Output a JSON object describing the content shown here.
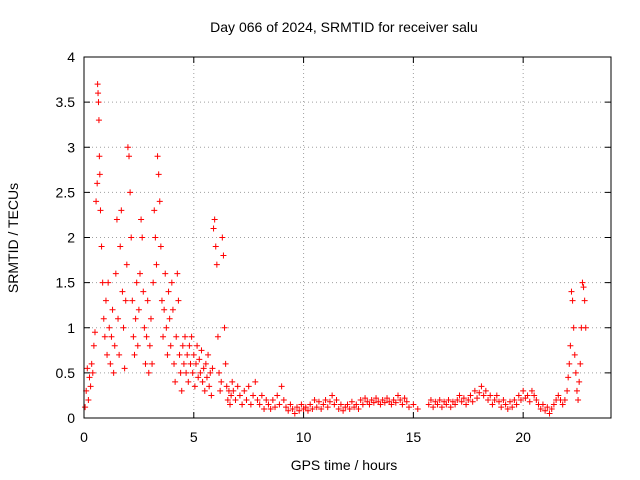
{
  "chart_data": {
    "type": "scatter",
    "title": "Day 066 of 2024, SRMTID for receiver salu",
    "xlabel": "GPS time / hours",
    "ylabel": "SRMTID / TECUs",
    "xlim": [
      0,
      24
    ],
    "ylim": [
      0,
      4
    ],
    "xticks": [
      0,
      5,
      10,
      15,
      20
    ],
    "xtick_labels": [
      "0",
      "5",
      "10",
      "15",
      "20"
    ],
    "yticks": [
      0,
      0.5,
      1,
      1.5,
      2,
      2.5,
      3,
      3.5,
      4
    ],
    "ytick_labels": [
      "0",
      "0.5",
      "1",
      "1.5",
      "2",
      "2.5",
      "3",
      "3.5",
      "4"
    ],
    "grid": true,
    "marker": "+",
    "color": "#ff0000",
    "series": [
      {
        "name": "SRMTID",
        "points": [
          [
            0.05,
            0.12
          ],
          [
            0.1,
            0.3
          ],
          [
            0.15,
            0.55
          ],
          [
            0.2,
            0.2
          ],
          [
            0.25,
            0.45
          ],
          [
            0.3,
            0.35
          ],
          [
            0.35,
            0.6
          ],
          [
            0.4,
            0.5
          ],
          [
            0.45,
            0.8
          ],
          [
            0.5,
            0.95
          ],
          [
            0.55,
            2.4
          ],
          [
            0.6,
            2.6
          ],
          [
            0.62,
            3.7
          ],
          [
            0.64,
            3.6
          ],
          [
            0.66,
            3.5
          ],
          [
            0.68,
            3.3
          ],
          [
            0.7,
            2.9
          ],
          [
            0.72,
            2.7
          ],
          [
            0.75,
            2.3
          ],
          [
            0.8,
            1.9
          ],
          [
            0.85,
            1.5
          ],
          [
            0.9,
            1.1
          ],
          [
            0.95,
            0.9
          ],
          [
            1.0,
            1.3
          ],
          [
            1.05,
            0.7
          ],
          [
            1.1,
            1.5
          ],
          [
            1.15,
            1.0
          ],
          [
            1.2,
            0.6
          ],
          [
            1.25,
            0.9
          ],
          [
            1.3,
            1.2
          ],
          [
            1.35,
            0.5
          ],
          [
            1.4,
            0.8
          ],
          [
            1.45,
            1.6
          ],
          [
            1.5,
            2.2
          ],
          [
            1.55,
            1.1
          ],
          [
            1.6,
            0.7
          ],
          [
            1.65,
            1.9
          ],
          [
            1.7,
            2.3
          ],
          [
            1.75,
            1.4
          ],
          [
            1.8,
            1.0
          ],
          [
            1.85,
            0.55
          ],
          [
            1.9,
            1.3
          ],
          [
            1.95,
            1.7
          ],
          [
            2.0,
            3.0
          ],
          [
            2.05,
            2.9
          ],
          [
            2.1,
            2.5
          ],
          [
            2.15,
            2.0
          ],
          [
            2.2,
            1.3
          ],
          [
            2.25,
            0.9
          ],
          [
            2.3,
            0.7
          ],
          [
            2.35,
            1.1
          ],
          [
            2.4,
            1.5
          ],
          [
            2.45,
            0.8
          ],
          [
            2.5,
            1.2
          ],
          [
            2.55,
            1.6
          ],
          [
            2.6,
            2.2
          ],
          [
            2.65,
            2.0
          ],
          [
            2.7,
            1.4
          ],
          [
            2.75,
            1.0
          ],
          [
            2.8,
            0.6
          ],
          [
            2.85,
            0.9
          ],
          [
            2.9,
            1.3
          ],
          [
            2.95,
            0.5
          ],
          [
            3.0,
            0.8
          ],
          [
            3.05,
            1.1
          ],
          [
            3.1,
            0.6
          ],
          [
            3.15,
            1.5
          ],
          [
            3.2,
            2.3
          ],
          [
            3.25,
            2.0
          ],
          [
            3.3,
            1.7
          ],
          [
            3.35,
            2.9
          ],
          [
            3.4,
            2.7
          ],
          [
            3.45,
            2.4
          ],
          [
            3.5,
            1.9
          ],
          [
            3.55,
            1.3
          ],
          [
            3.6,
            0.9
          ],
          [
            3.65,
            1.2
          ],
          [
            3.7,
            1.6
          ],
          [
            3.75,
            1.0
          ],
          [
            3.8,
            0.7
          ],
          [
            3.85,
            1.4
          ],
          [
            3.9,
            1.1
          ],
          [
            3.95,
            0.8
          ],
          [
            4.0,
            1.5
          ],
          [
            4.05,
            1.2
          ],
          [
            4.1,
            0.6
          ],
          [
            4.15,
            0.4
          ],
          [
            4.2,
            0.9
          ],
          [
            4.25,
            1.6
          ],
          [
            4.3,
            1.3
          ],
          [
            4.35,
            0.7
          ],
          [
            4.4,
            0.5
          ],
          [
            4.45,
            0.3
          ],
          [
            4.5,
            0.8
          ],
          [
            4.55,
            0.6
          ],
          [
            4.6,
            0.9
          ],
          [
            4.65,
            0.5
          ],
          [
            4.7,
            0.7
          ],
          [
            4.75,
            0.4
          ],
          [
            4.8,
            0.8
          ],
          [
            4.85,
            0.6
          ],
          [
            4.9,
            0.9
          ],
          [
            4.95,
            0.5
          ],
          [
            5.0,
            0.7
          ],
          [
            5.05,
            0.35
          ],
          [
            5.1,
            0.6
          ],
          [
            5.15,
            0.8
          ],
          [
            5.2,
            0.45
          ],
          [
            5.25,
            0.65
          ],
          [
            5.3,
            0.5
          ],
          [
            5.35,
            0.75
          ],
          [
            5.4,
            0.4
          ],
          [
            5.45,
            0.55
          ],
          [
            5.5,
            0.3
          ],
          [
            5.55,
            0.6
          ],
          [
            5.6,
            0.45
          ],
          [
            5.65,
            0.7
          ],
          [
            5.7,
            0.35
          ],
          [
            5.75,
            0.5
          ],
          [
            5.8,
            0.25
          ],
          [
            5.85,
            0.55
          ],
          [
            5.9,
            2.1
          ],
          [
            5.95,
            2.2
          ],
          [
            6.0,
            1.9
          ],
          [
            6.05,
            1.7
          ],
          [
            6.1,
            0.9
          ],
          [
            6.15,
            0.5
          ],
          [
            6.2,
            0.3
          ],
          [
            6.25,
            0.4
          ],
          [
            6.3,
            2.0
          ],
          [
            6.35,
            1.8
          ],
          [
            6.4,
            1.0
          ],
          [
            6.45,
            0.6
          ],
          [
            6.5,
            0.35
          ],
          [
            6.55,
            0.2
          ],
          [
            6.6,
            0.3
          ],
          [
            6.65,
            0.15
          ],
          [
            6.7,
            0.25
          ],
          [
            6.75,
            0.4
          ],
          [
            6.8,
            0.3
          ],
          [
            6.9,
            0.2
          ],
          [
            7.0,
            0.35
          ],
          [
            7.1,
            0.25
          ],
          [
            7.2,
            0.15
          ],
          [
            7.3,
            0.3
          ],
          [
            7.4,
            0.2
          ],
          [
            7.5,
            0.35
          ],
          [
            7.6,
            0.15
          ],
          [
            7.7,
            0.25
          ],
          [
            7.8,
            0.4
          ],
          [
            7.9,
            0.2
          ],
          [
            8.0,
            0.15
          ],
          [
            8.1,
            0.25
          ],
          [
            8.2,
            0.1
          ],
          [
            8.3,
            0.2
          ],
          [
            8.4,
            0.15
          ],
          [
            8.5,
            0.1
          ],
          [
            8.6,
            0.2
          ],
          [
            8.7,
            0.12
          ],
          [
            8.8,
            0.25
          ],
          [
            8.9,
            0.15
          ],
          [
            9.0,
            0.35
          ],
          [
            9.1,
            0.2
          ],
          [
            9.2,
            0.12
          ],
          [
            9.3,
            0.08
          ],
          [
            9.4,
            0.15
          ],
          [
            9.5,
            0.1
          ],
          [
            9.6,
            0.05
          ],
          [
            9.7,
            0.12
          ],
          [
            9.8,
            0.08
          ],
          [
            9.9,
            0.15
          ],
          [
            10.0,
            0.1
          ],
          [
            10.1,
            0.12
          ],
          [
            10.2,
            0.08
          ],
          [
            10.3,
            0.15
          ],
          [
            10.4,
            0.1
          ],
          [
            10.5,
            0.2
          ],
          [
            10.6,
            0.12
          ],
          [
            10.7,
            0.18
          ],
          [
            10.8,
            0.1
          ],
          [
            10.9,
            0.15
          ],
          [
            11.0,
            0.2
          ],
          [
            11.1,
            0.12
          ],
          [
            11.2,
            0.18
          ],
          [
            11.3,
            0.25
          ],
          [
            11.4,
            0.15
          ],
          [
            11.5,
            0.2
          ],
          [
            11.6,
            0.1
          ],
          [
            11.7,
            0.15
          ],
          [
            11.8,
            0.08
          ],
          [
            11.9,
            0.12
          ],
          [
            12.0,
            0.15
          ],
          [
            12.1,
            0.1
          ],
          [
            12.2,
            0.18
          ],
          [
            12.3,
            0.12
          ],
          [
            12.4,
            0.15
          ],
          [
            12.5,
            0.1
          ],
          [
            12.6,
            0.2
          ],
          [
            12.7,
            0.15
          ],
          [
            12.8,
            0.22
          ],
          [
            12.9,
            0.18
          ],
          [
            13.0,
            0.15
          ],
          [
            13.1,
            0.2
          ],
          [
            13.2,
            0.17
          ],
          [
            13.3,
            0.22
          ],
          [
            13.4,
            0.18
          ],
          [
            13.5,
            0.15
          ],
          [
            13.6,
            0.2
          ],
          [
            13.7,
            0.17
          ],
          [
            13.8,
            0.22
          ],
          [
            13.9,
            0.18
          ],
          [
            14.0,
            0.15
          ],
          [
            14.1,
            0.2
          ],
          [
            14.2,
            0.17
          ],
          [
            14.3,
            0.25
          ],
          [
            14.4,
            0.2
          ],
          [
            14.5,
            0.15
          ],
          [
            14.6,
            0.22
          ],
          [
            14.7,
            0.18
          ],
          [
            14.8,
            0.12
          ],
          [
            15.0,
            0.15
          ],
          [
            15.2,
            0.1
          ],
          [
            15.7,
            0.15
          ],
          [
            15.8,
            0.2
          ],
          [
            15.9,
            0.12
          ],
          [
            16.0,
            0.18
          ],
          [
            16.1,
            0.15
          ],
          [
            16.2,
            0.2
          ],
          [
            16.3,
            0.12
          ],
          [
            16.4,
            0.18
          ],
          [
            16.5,
            0.15
          ],
          [
            16.6,
            0.2
          ],
          [
            16.7,
            0.12
          ],
          [
            16.8,
            0.18
          ],
          [
            16.9,
            0.15
          ],
          [
            17.0,
            0.2
          ],
          [
            17.1,
            0.25
          ],
          [
            17.2,
            0.18
          ],
          [
            17.3,
            0.22
          ],
          [
            17.4,
            0.15
          ],
          [
            17.5,
            0.2
          ],
          [
            17.6,
            0.25
          ],
          [
            17.7,
            0.18
          ],
          [
            17.8,
            0.3
          ],
          [
            17.9,
            0.22
          ],
          [
            18.0,
            0.28
          ],
          [
            18.1,
            0.35
          ],
          [
            18.2,
            0.25
          ],
          [
            18.3,
            0.3
          ],
          [
            18.4,
            0.2
          ],
          [
            18.5,
            0.25
          ],
          [
            18.6,
            0.15
          ],
          [
            18.7,
            0.2
          ],
          [
            18.8,
            0.25
          ],
          [
            18.9,
            0.18
          ],
          [
            19.0,
            0.12
          ],
          [
            19.1,
            0.2
          ],
          [
            19.2,
            0.15
          ],
          [
            19.3,
            0.1
          ],
          [
            19.4,
            0.18
          ],
          [
            19.5,
            0.12
          ],
          [
            19.6,
            0.2
          ],
          [
            19.7,
            0.15
          ],
          [
            19.8,
            0.25
          ],
          [
            19.9,
            0.2
          ],
          [
            20.0,
            0.3
          ],
          [
            20.1,
            0.22
          ],
          [
            20.2,
            0.25
          ],
          [
            20.3,
            0.18
          ],
          [
            20.4,
            0.3
          ],
          [
            20.5,
            0.25
          ],
          [
            20.6,
            0.2
          ],
          [
            20.7,
            0.15
          ],
          [
            20.8,
            0.1
          ],
          [
            20.9,
            0.15
          ],
          [
            21.0,
            0.08
          ],
          [
            21.1,
            0.12
          ],
          [
            21.2,
            0.05
          ],
          [
            21.3,
            0.1
          ],
          [
            21.4,
            0.15
          ],
          [
            21.5,
            0.2
          ],
          [
            21.6,
            0.25
          ],
          [
            21.7,
            0.2
          ],
          [
            21.8,
            0.15
          ],
          [
            21.9,
            0.2
          ],
          [
            22.0,
            0.3
          ],
          [
            22.05,
            0.45
          ],
          [
            22.1,
            0.6
          ],
          [
            22.15,
            0.8
          ],
          [
            22.2,
            1.4
          ],
          [
            22.25,
            1.3
          ],
          [
            22.3,
            1.0
          ],
          [
            22.35,
            0.7
          ],
          [
            22.4,
            0.5
          ],
          [
            22.45,
            0.3
          ],
          [
            22.5,
            0.2
          ],
          [
            22.55,
            0.4
          ],
          [
            22.6,
            0.6
          ],
          [
            22.65,
            1.0
          ],
          [
            22.7,
            1.5
          ],
          [
            22.75,
            1.45
          ],
          [
            22.8,
            1.3
          ],
          [
            22.85,
            1.0
          ]
        ]
      }
    ]
  }
}
